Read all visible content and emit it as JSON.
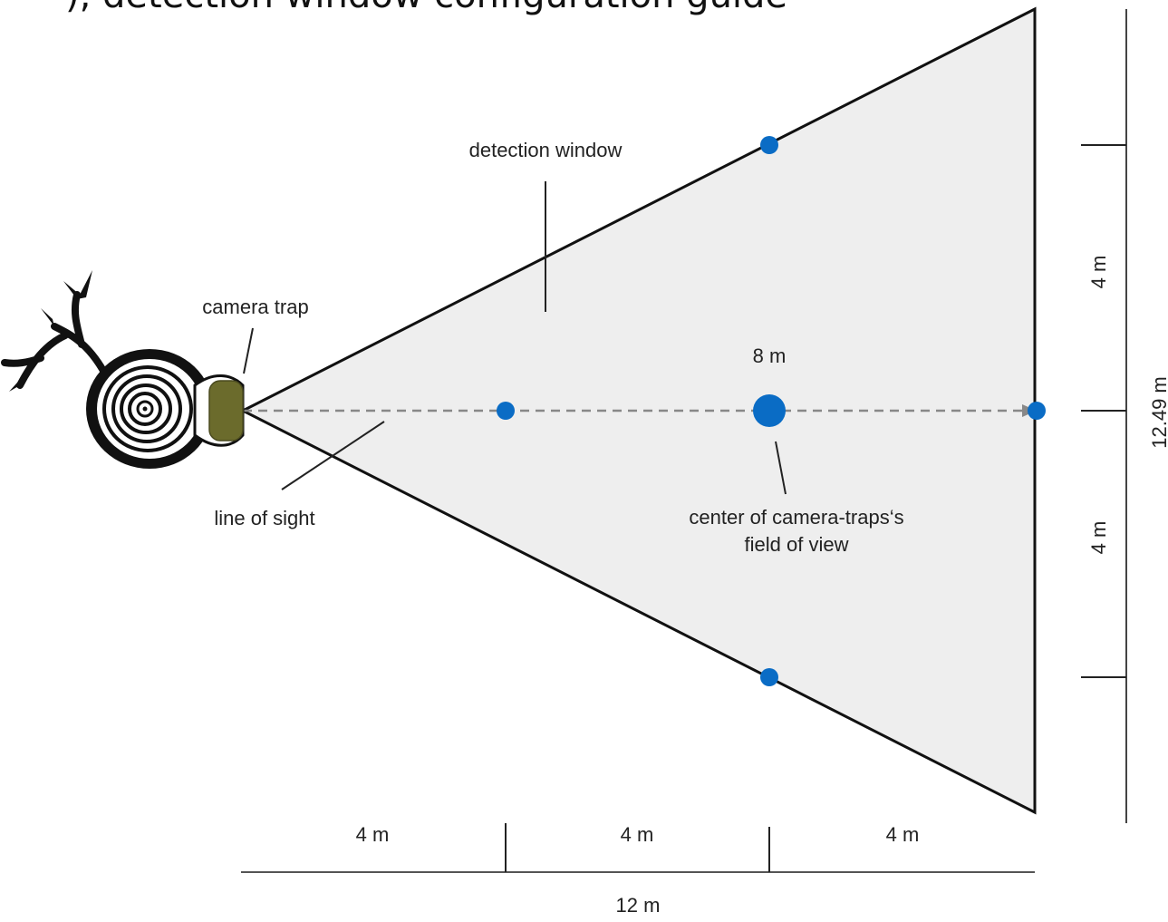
{
  "caption_fragment": "), detection window configuration guide",
  "labels": {
    "detection_window": "detection window",
    "camera_trap": "camera trap",
    "line_of_sight": "line of sight",
    "center_line1": "center of camera-traps‘s",
    "center_line2": "field of view",
    "center_distance": "8 m"
  },
  "dimensions": {
    "bottom_segments": [
      "4 m",
      "4 m",
      "4 m"
    ],
    "bottom_total": "12 m",
    "right_segments": [
      "4 m",
      "4 m"
    ],
    "right_total": "12.49 m"
  },
  "colors": {
    "window_fill": "#eeeeee",
    "marker": "#0a6cc5",
    "camera_body": "#6b6b2c",
    "outline": "#111111",
    "sight_line": "#888888",
    "dimension_line": "#555555"
  },
  "icons": {
    "tree_stump": "tree-stump-icon",
    "camera": "camera-trap-icon"
  }
}
